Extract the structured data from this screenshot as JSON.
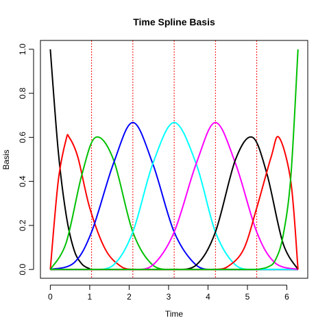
{
  "chart_data": {
    "type": "line",
    "title": "Time Spline Basis",
    "xlabel": "Time",
    "ylabel": "Basis",
    "xlim": [
      -0.25,
      6.53
    ],
    "ylim": [
      -0.04,
      1.04
    ],
    "x_ticks": [
      0,
      1,
      2,
      3,
      4,
      5,
      6
    ],
    "x_tick_labels": [
      "0",
      "1",
      "2",
      "3",
      "4",
      "5",
      "6"
    ],
    "y_ticks": [
      0.0,
      0.2,
      0.4,
      0.6,
      0.8,
      1.0
    ],
    "y_tick_labels": [
      "0.0",
      "0.2",
      "0.4",
      "0.6",
      "0.8",
      "1.0"
    ],
    "knots": [
      1.047,
      2.094,
      3.142,
      4.189,
      5.236
    ],
    "boundary": [
      0,
      6.283
    ],
    "degree": 3,
    "grid": false,
    "legend": "none",
    "series": [
      {
        "color": "#000000",
        "x": [
          0,
          0.2,
          0.4,
          0.6,
          0.8,
          1.0,
          1.047
        ],
        "y": [
          1.0,
          0.54,
          0.25,
          0.09,
          0.025,
          0.003,
          0.0
        ]
      },
      {
        "color": "#ff0000",
        "x": [
          0,
          0.2,
          0.4,
          0.48,
          0.7,
          1.0,
          1.4,
          1.8,
          2.094
        ],
        "y": [
          0.0,
          0.4,
          0.59,
          0.6,
          0.51,
          0.28,
          0.09,
          0.013,
          0.0
        ]
      },
      {
        "color": "#00c000",
        "x": [
          0,
          0.4,
          0.8,
          1.15,
          1.6,
          2.094,
          2.6,
          3.142
        ],
        "y": [
          0.0,
          0.12,
          0.43,
          0.6,
          0.5,
          0.17,
          0.02,
          0.0
        ]
      },
      {
        "color": "#0000ff",
        "x": [
          0,
          0.6,
          1.047,
          1.6,
          2.094,
          2.6,
          3.142,
          3.7,
          4.189
        ],
        "y": [
          0.0,
          0.03,
          0.17,
          0.48,
          0.667,
          0.48,
          0.17,
          0.02,
          0.0
        ]
      },
      {
        "color": "#00ffff",
        "x": [
          1.047,
          1.6,
          2.094,
          2.6,
          3.142,
          3.7,
          4.189,
          4.7,
          5.236
        ],
        "y": [
          0.0,
          0.02,
          0.17,
          0.48,
          0.667,
          0.48,
          0.17,
          0.02,
          0.0
        ]
      },
      {
        "color": "#ff00ff",
        "x": [
          2.094,
          2.6,
          3.142,
          3.7,
          4.189,
          4.7,
          5.236,
          5.7,
          6.283
        ],
        "y": [
          0.0,
          0.02,
          0.17,
          0.48,
          0.667,
          0.48,
          0.17,
          0.03,
          0.0
        ]
      },
      {
        "color": "#000000",
        "x": [
          3.142,
          3.7,
          4.189,
          4.7,
          5.13,
          5.5,
          5.9,
          6.283
        ],
        "y": [
          0.0,
          0.02,
          0.17,
          0.5,
          0.6,
          0.43,
          0.12,
          0.0
        ]
      },
      {
        "color": "#ff0000",
        "x": [
          4.189,
          4.5,
          4.9,
          5.236,
          5.6,
          5.8,
          6.1,
          6.283
        ],
        "y": [
          0.0,
          0.013,
          0.09,
          0.28,
          0.51,
          0.6,
          0.4,
          0.0
        ]
      },
      {
        "color": "#00c000",
        "x": [
          5.236,
          5.5,
          5.7,
          5.9,
          6.1,
          6.283
        ],
        "y": [
          0.0,
          0.01,
          0.04,
          0.15,
          0.42,
          1.0
        ]
      }
    ]
  }
}
